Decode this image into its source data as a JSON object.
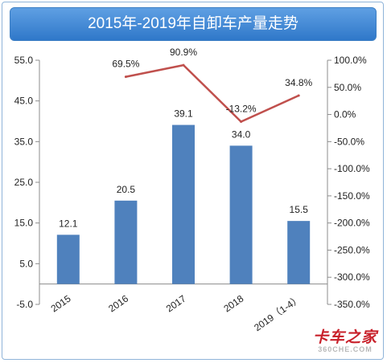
{
  "title": "2015年-2019年自卸车产量走势",
  "chart_data": {
    "type": "bar",
    "categories": [
      "2015",
      "2016",
      "2017",
      "2018",
      "2019（1-4）"
    ],
    "series": [
      {
        "type": "bar",
        "values": [
          12.1,
          20.5,
          39.1,
          34.0,
          15.5
        ],
        "labels": [
          "12.1",
          "20.5",
          "39.1",
          "34.0",
          "15.5"
        ],
        "color": "#4f81bd"
      },
      {
        "type": "line",
        "axis": "right",
        "values": [
          null,
          69.5,
          90.9,
          -13.2,
          34.8
        ],
        "labels": [
          "",
          "69.5%",
          "90.9%",
          "-13.2%",
          "34.8%"
        ],
        "color": "#c0504d"
      }
    ],
    "y_left": {
      "min": -5,
      "max": 55,
      "ticks": [
        "55.0",
        "45.0",
        "35.0",
        "25.0",
        "15.0",
        "5.0",
        "-5.0"
      ]
    },
    "y_right": {
      "min": -350,
      "max": 100,
      "ticks": [
        "100.0%",
        "50.0%",
        "0.0%",
        "-50.0%",
        "-100.0%",
        "-150.0%",
        "-200.0%",
        "-250.0%",
        "-300.0%",
        "-350.0%"
      ]
    },
    "grid": false,
    "legend": "none"
  },
  "watermark": {
    "main": "卡车之家",
    "sub": "360CHE.COM"
  }
}
